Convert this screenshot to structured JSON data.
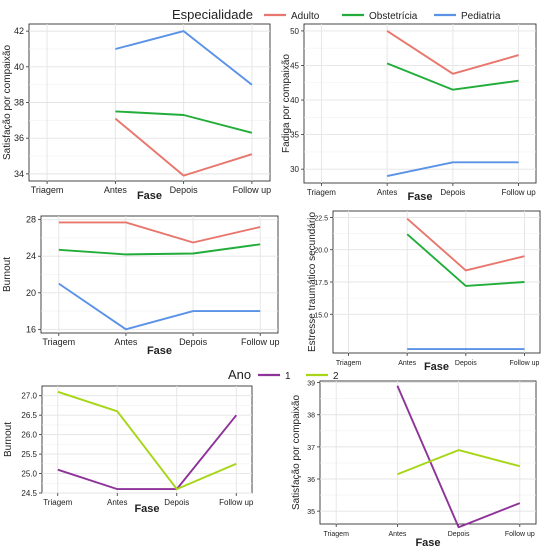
{
  "legend_top": {
    "title": "Especialidade",
    "items": [
      {
        "label": "Adulto",
        "color": "#e8766d"
      },
      {
        "label": "Obstetrícia",
        "color": "#22ad3a"
      },
      {
        "label": "Pediatria",
        "color": "#5a92e8"
      }
    ]
  },
  "legend_bottom": {
    "title": "Ano",
    "items": [
      {
        "label": "1",
        "color": "#8e3399"
      },
      {
        "label": "2",
        "color": "#a6d615"
      }
    ]
  },
  "chart_data": [
    {
      "type": "line",
      "categories": [
        "Triagem",
        "Antes",
        "Depois",
        "Follow up"
      ],
      "xlabel": "Fase",
      "ylabel": "Satisfação por compaixão",
      "ylim": [
        33.6,
        42.4
      ],
      "yticks": [
        34,
        36,
        38,
        40,
        42
      ],
      "ytick_labels": [
        "34",
        "36",
        "38",
        "40",
        "42"
      ],
      "series": [
        {
          "name": "Adulto",
          "color": "#e8766d",
          "values": [
            null,
            37.1,
            33.9,
            35.1
          ]
        },
        {
          "name": "Obstetrícia",
          "color": "#22ad3a",
          "values": [
            null,
            37.5,
            37.3,
            36.3
          ]
        },
        {
          "name": "Pediatria",
          "color": "#5a92e8",
          "values": [
            null,
            41.0,
            42.0,
            39.0
          ]
        }
      ]
    },
    {
      "type": "line",
      "categories": [
        "Triagem",
        "Antes",
        "Depois",
        "Follow up"
      ],
      "xlabel": "Fase",
      "ylabel": "Fadiga por compaixão",
      "ylim": [
        28.0,
        51.0
      ],
      "yticks": [
        30,
        35,
        40,
        45,
        50
      ],
      "ytick_labels": [
        "30",
        "35",
        "40",
        "45",
        "50"
      ],
      "series": [
        {
          "name": "Adulto",
          "color": "#e8766d",
          "values": [
            null,
            50.0,
            43.8,
            46.5
          ]
        },
        {
          "name": "Obstetrícia",
          "color": "#22ad3a",
          "values": [
            null,
            45.3,
            41.5,
            42.8
          ]
        },
        {
          "name": "Pediatria",
          "color": "#5a92e8",
          "values": [
            null,
            29.0,
            31.0,
            31.0
          ]
        }
      ]
    },
    {
      "type": "line",
      "categories": [
        "Triagem",
        "Antes",
        "Depois",
        "Follow up"
      ],
      "xlabel": "Fase",
      "ylabel": "Burnout",
      "ylim": [
        15.6,
        28.4
      ],
      "yticks": [
        16,
        20,
        24,
        28
      ],
      "ytick_labels": [
        "16",
        "20",
        "24",
        "28"
      ],
      "series": [
        {
          "name": "Adulto",
          "color": "#e8766d",
          "values": [
            27.7,
            27.7,
            25.5,
            27.2
          ]
        },
        {
          "name": "Obstetrícia",
          "color": "#22ad3a",
          "values": [
            24.7,
            24.2,
            24.3,
            25.3
          ]
        },
        {
          "name": "Pediatria",
          "color": "#5a92e8",
          "values": [
            21.0,
            16.0,
            18.0,
            18.0
          ]
        }
      ]
    },
    {
      "type": "line",
      "categories": [
        "Triagem",
        "Antes",
        "Depois",
        "Follow up"
      ],
      "xlabel": "Fase",
      "ylabel": "Estresse traumático secundário",
      "ylim": [
        12.0,
        23.0
      ],
      "yticks": [
        15,
        17.5,
        20,
        22.5
      ],
      "ytick_labels": [
        "15.0",
        "17.5",
        "20.0",
        "22.5"
      ],
      "series": [
        {
          "name": "Adulto",
          "color": "#e8766d",
          "values": [
            null,
            22.4,
            18.4,
            19.5
          ]
        },
        {
          "name": "Obstetrícia",
          "color": "#22ad3a",
          "values": [
            null,
            21.2,
            17.2,
            17.5
          ]
        },
        {
          "name": "Pediatria",
          "color": "#5a92e8",
          "values": [
            null,
            12.3,
            12.3,
            12.3
          ]
        }
      ]
    },
    {
      "type": "line",
      "categories": [
        "Triagem",
        "Antes",
        "Depois",
        "Follow up"
      ],
      "xlabel": "Fase",
      "ylabel": "Burnout",
      "ylim": [
        24.5,
        27.25
      ],
      "yticks": [
        24.5,
        25.0,
        25.5,
        26.0,
        26.5,
        27.0
      ],
      "ytick_labels": [
        "24.5",
        "25.0",
        "25.5",
        "26.0",
        "26.5",
        "27.0"
      ],
      "series": [
        {
          "name": "1",
          "color": "#8e3399",
          "values": [
            25.1,
            24.6,
            24.6,
            26.5
          ]
        },
        {
          "name": "2",
          "color": "#a6d615",
          "values": [
            27.1,
            26.6,
            24.6,
            25.25
          ]
        }
      ]
    },
    {
      "type": "line",
      "categories": [
        "Triagem",
        "Antes",
        "Depois",
        "Follow up"
      ],
      "xlabel": "Fase",
      "ylabel": "Satisfação por compaixão",
      "ylim": [
        34.6,
        39.05
      ],
      "yticks": [
        35,
        36,
        37,
        38,
        39
      ],
      "ytick_labels": [
        "35",
        "36",
        "37",
        "38",
        "39"
      ],
      "series": [
        {
          "name": "1",
          "color": "#8e3399",
          "values": [
            null,
            38.9,
            34.5,
            35.25
          ]
        },
        {
          "name": "2",
          "color": "#a6d615",
          "values": [
            null,
            36.15,
            36.9,
            36.4
          ]
        }
      ]
    }
  ]
}
